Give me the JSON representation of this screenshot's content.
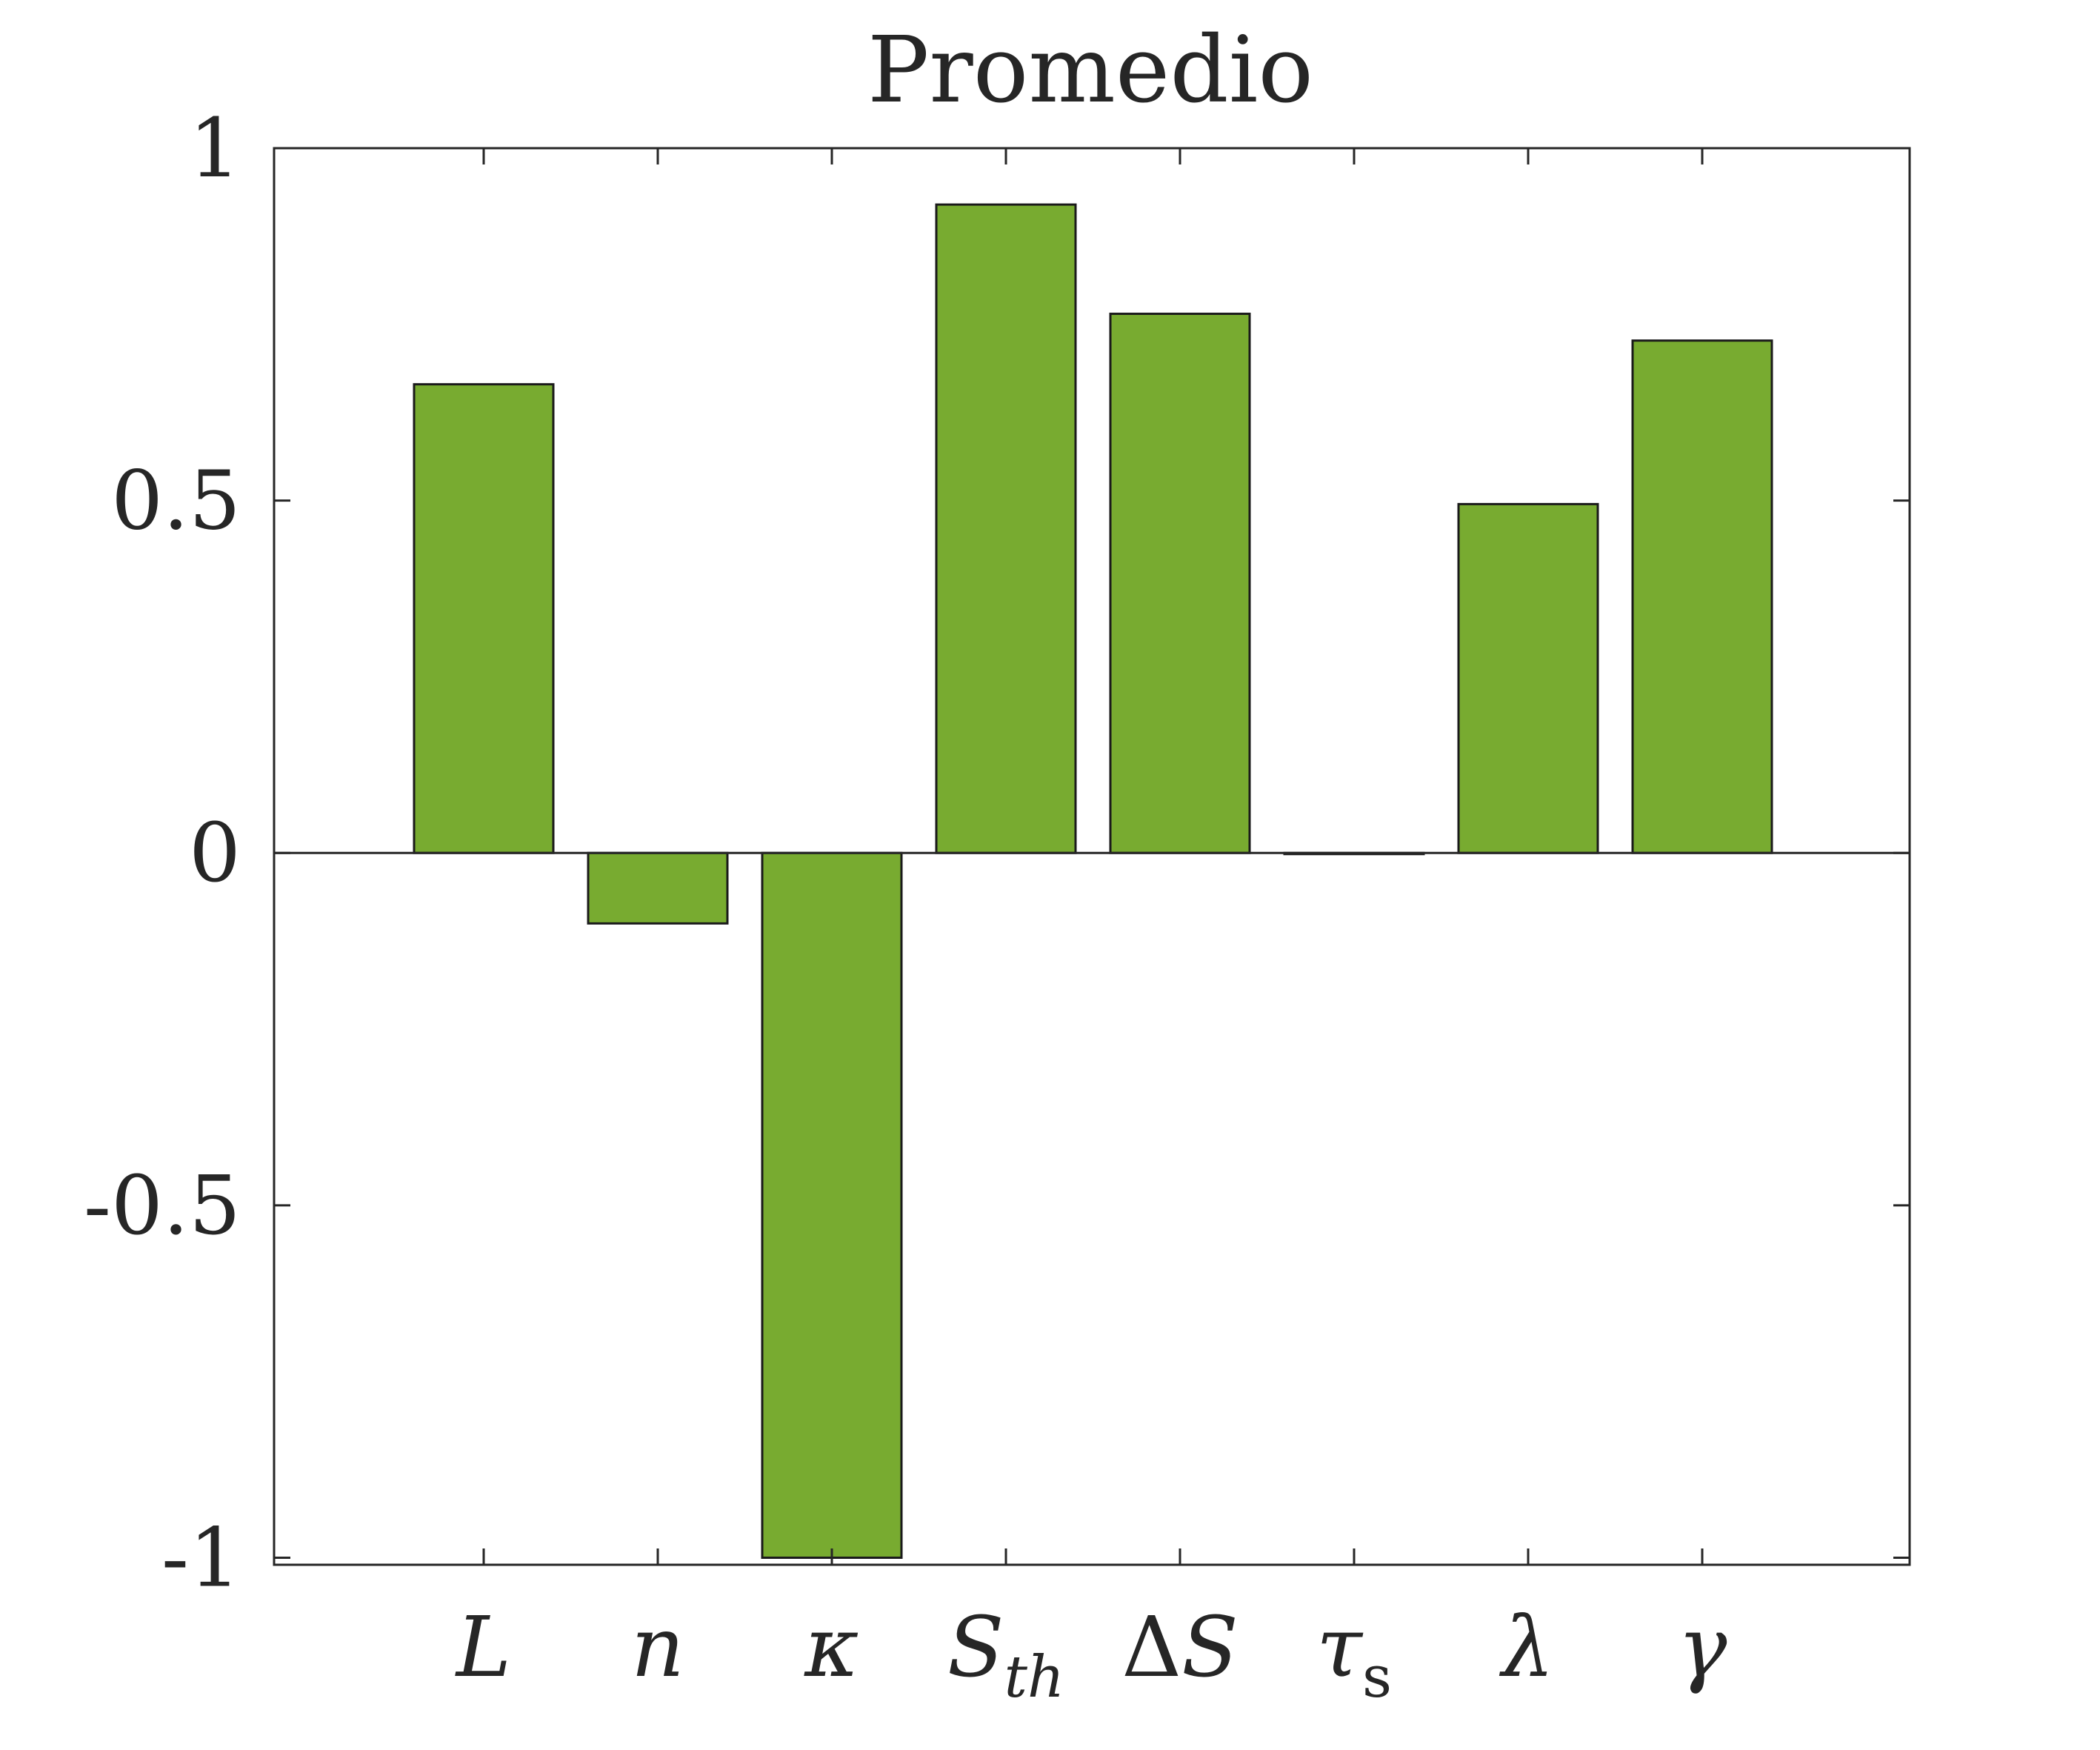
{
  "chart_data": {
    "type": "bar",
    "title": "Promedio",
    "categories": [
      "L",
      "n",
      "κ",
      "S_th",
      "ΔS",
      "τ_s",
      "λ",
      "γ"
    ],
    "values": [
      0.665,
      -0.1,
      -1.0,
      0.92,
      0.765,
      0.0,
      0.495,
      0.727
    ],
    "ylim": [
      -1.01,
      1
    ],
    "yticks": [
      -1,
      -0.5,
      0,
      0.5,
      1
    ],
    "ytick_labels": [
      "-1",
      "-0.5",
      "0",
      "0.5",
      "1"
    ],
    "xlabel": "",
    "ylabel": "",
    "grid": false,
    "bar_color": "#78ab30",
    "edge_color": "#1a1a1a",
    "tick_labels": [
      {
        "main": "L",
        "sub": ""
      },
      {
        "main": "n",
        "sub": ""
      },
      {
        "main": "κ",
        "sub": ""
      },
      {
        "main": "S",
        "sub": "th"
      },
      {
        "main": "ΔS",
        "sub": ""
      },
      {
        "main": "τ",
        "sub": "s"
      },
      {
        "main": "λ",
        "sub": ""
      },
      {
        "main": "γ",
        "sub": ""
      }
    ]
  }
}
